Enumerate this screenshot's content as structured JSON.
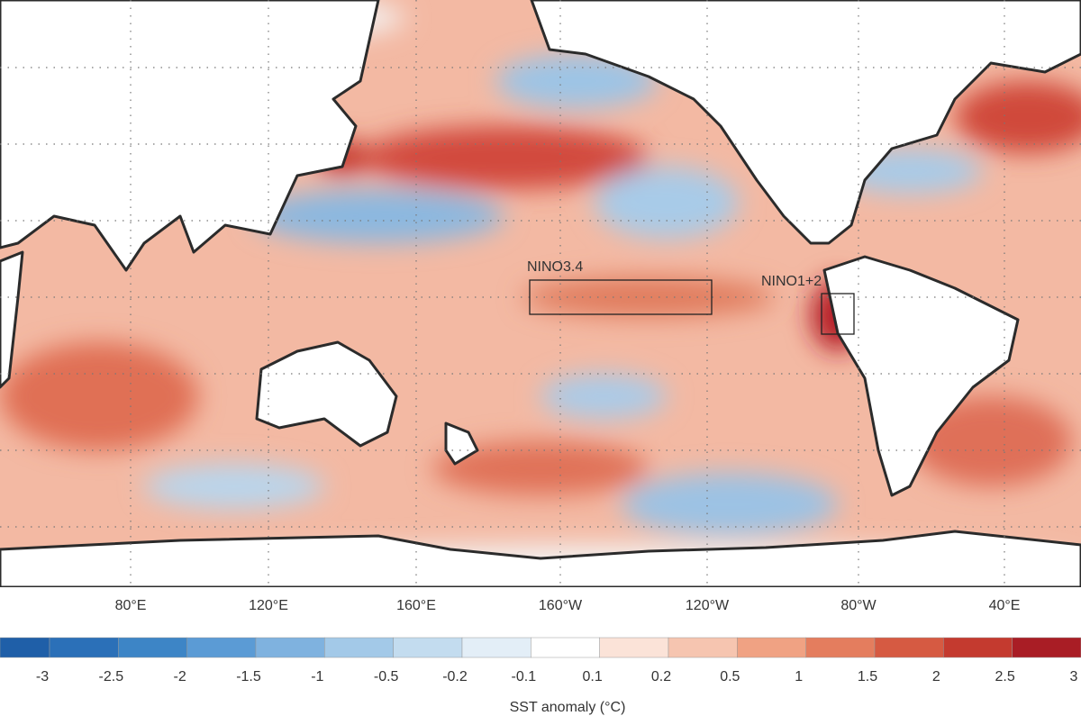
{
  "map": {
    "regions": [
      "NINO3.4",
      "NINO1+2"
    ],
    "longitude_labels": [
      "80°E",
      "120°E",
      "160°E",
      "160°W",
      "120°W",
      "80°W",
      "40°E"
    ]
  },
  "colorbar": {
    "title": "SST anomaly (°C)",
    "ticks": [
      -3,
      -2.5,
      -2,
      -1.5,
      -1,
      -0.5,
      -0.2,
      -0.1,
      0.1,
      0.2,
      0.5,
      1,
      1.5,
      2,
      2.5,
      3
    ],
    "colors": [
      "#1f5fa8",
      "#2b70b8",
      "#3d85c6",
      "#5b9bd5",
      "#7fb2df",
      "#a3c9e8",
      "#c3dcef",
      "#e3eef7",
      "#ffffff",
      "#fbe3d8",
      "#f6c5b0",
      "#f0a283",
      "#e47d5e",
      "#d65a42",
      "#c43a2f",
      "#a91d25"
    ]
  }
}
